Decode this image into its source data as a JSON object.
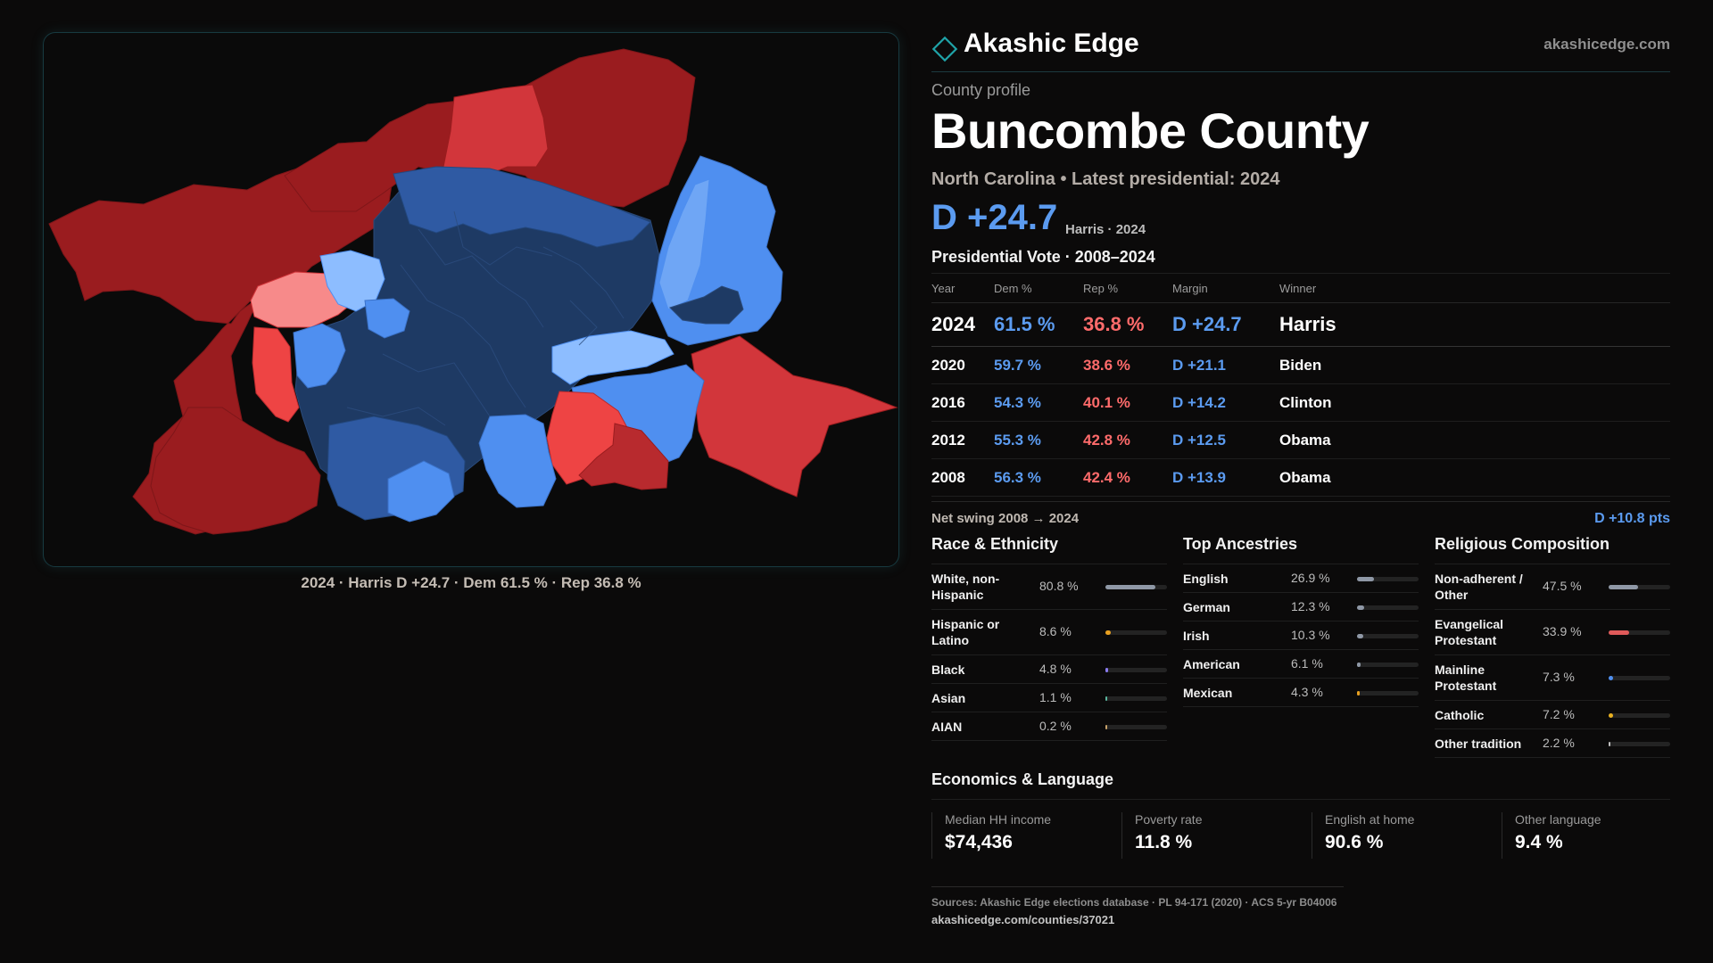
{
  "brand": {
    "name": "Akashic Edge",
    "url": "akashicedge.com",
    "accent": "#1fa3a8"
  },
  "profile_label": "County profile",
  "county": {
    "name": "Buncombe County",
    "subtitle": "North Carolina • Latest presidential: 2024",
    "headline_margin": "D +24.7",
    "headline_winner": "Harris · 2024"
  },
  "map": {
    "caption": "2024 · Harris D +24.7 · Dem 61.5 % · Rep 36.8 %",
    "legend_colors": {
      "dem_strong": "#1e3a64",
      "dem_mid": "#2f5aa3",
      "dem_light": "#4f8ff0",
      "dem_pale": "#8dbdff",
      "rep_strong": "#9a1c1f",
      "rep_mid": "#d2363b",
      "rep_light": "#ee4444",
      "rep_pale": "#f78a8a"
    }
  },
  "presidential": {
    "title": "Presidential Vote · 2008–2024",
    "headers": {
      "year": "Year",
      "dem": "Dem %",
      "rep": "Rep %",
      "margin": "Margin",
      "winner": "Winner"
    },
    "rows": [
      {
        "year": "2024",
        "dem": "61.5 %",
        "rep": "36.8 %",
        "margin": "D +24.7",
        "winner": "Harris"
      },
      {
        "year": "2020",
        "dem": "59.7 %",
        "rep": "38.6 %",
        "margin": "D +21.1",
        "winner": "Biden"
      },
      {
        "year": "2016",
        "dem": "54.3 %",
        "rep": "40.1 %",
        "margin": "D +14.2",
        "winner": "Clinton"
      },
      {
        "year": "2012",
        "dem": "55.3 %",
        "rep": "42.8 %",
        "margin": "D +12.5",
        "winner": "Obama"
      },
      {
        "year": "2008",
        "dem": "56.3 %",
        "rep": "42.4 %",
        "margin": "D +13.9",
        "winner": "Obama"
      }
    ],
    "swing_label": "Net swing 2008 → 2024",
    "swing_value": "D +10.8 pts"
  },
  "race": {
    "title": "Race & Ethnicity",
    "items": [
      {
        "label": "White, non-Hispanic",
        "value": "80.8 %",
        "share": 0.808,
        "color": "#8f98a6"
      },
      {
        "label": "Hispanic or Latino",
        "value": "8.6 %",
        "share": 0.086,
        "color": "#e8a020"
      },
      {
        "label": "Black",
        "value": "4.8 %",
        "share": 0.048,
        "color": "#8b7cf0"
      },
      {
        "label": "Asian",
        "value": "1.1 %",
        "share": 0.011,
        "color": "#5bb8a0"
      },
      {
        "label": "AIAN",
        "value": "0.2 %",
        "share": 0.002,
        "color": "#c9a36a"
      }
    ]
  },
  "ancestry": {
    "title": "Top Ancestries",
    "items": [
      {
        "label": "English",
        "value": "26.9 %",
        "share": 0.269,
        "color": "#8f98a6"
      },
      {
        "label": "German",
        "value": "12.3 %",
        "share": 0.123,
        "color": "#8f98a6"
      },
      {
        "label": "Irish",
        "value": "10.3 %",
        "share": 0.103,
        "color": "#8f98a6"
      },
      {
        "label": "American",
        "value": "6.1 %",
        "share": 0.061,
        "color": "#8f98a6"
      },
      {
        "label": "Mexican",
        "value": "4.3 %",
        "share": 0.043,
        "color": "#e8a020"
      }
    ]
  },
  "religion": {
    "title": "Religious Composition",
    "items": [
      {
        "label": "Non-adherent / Other",
        "value": "47.5 %",
        "share": 0.475,
        "color": "#8f98a6"
      },
      {
        "label": "Evangelical Protestant",
        "value": "33.9 %",
        "share": 0.339,
        "color": "#e05a5a"
      },
      {
        "label": "Mainline Protestant",
        "value": "7.3 %",
        "share": 0.073,
        "color": "#4f8ff0"
      },
      {
        "label": "Catholic",
        "value": "7.2 %",
        "share": 0.072,
        "color": "#e8b020"
      },
      {
        "label": "Other tradition",
        "value": "2.2 %",
        "share": 0.022,
        "color": "#bfbfbf"
      }
    ]
  },
  "economics": {
    "title": "Economics & Language",
    "items": [
      {
        "label": "Median HH income",
        "value": "$74,436"
      },
      {
        "label": "Poverty rate",
        "value": "11.8 %"
      },
      {
        "label": "English at home",
        "value": "90.6 %"
      },
      {
        "label": "Other language",
        "value": "9.4 %"
      }
    ]
  },
  "sources": {
    "line": "Sources: Akashic Edge elections database · PL 94-171 (2020) · ACS 5-yr B04006",
    "url": "akashicedge.com/counties/37021"
  }
}
